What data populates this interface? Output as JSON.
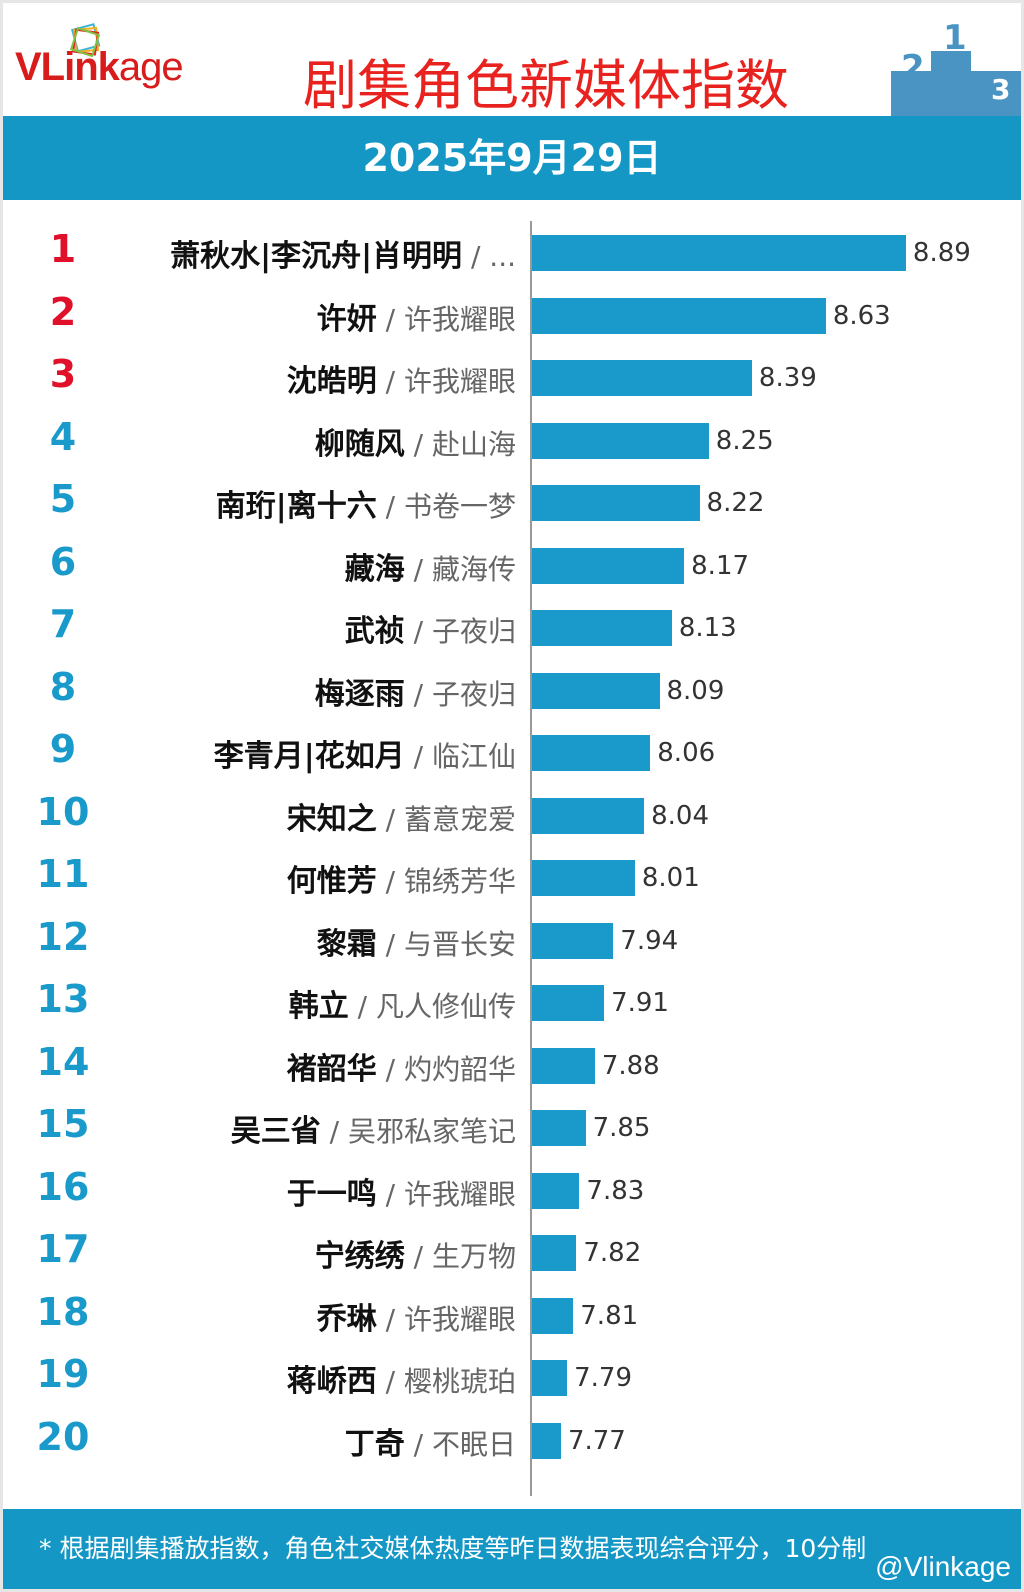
{
  "header": {
    "logo_main": "VLink",
    "logo_tail": "age",
    "title": "剧集角色新媒体指数",
    "date": "2025年9月29日"
  },
  "footer": {
    "note": "* 根据剧集播放指数，角色社交媒体热度等昨日数据表现综合评分，10分制",
    "watermark": "@Vlinkage"
  },
  "colors": {
    "bar": "#1a9acb",
    "top_rank": "#e0102a",
    "rank": "#1a9acb",
    "title": "#e8231f"
  },
  "chart_data": {
    "type": "bar",
    "orientation": "horizontal",
    "title": "剧集角色新媒体指数",
    "categories": [
      "萧秋水|李沉舟|肖明明",
      "许妍",
      "沈皓明",
      "柳随风",
      "南珩|离十六",
      "藏海",
      "武祯",
      "梅逐雨",
      "李青月|花如月",
      "宋知之",
      "何惟芳",
      "黎霜",
      "韩立",
      "褚韶华",
      "吴三省",
      "于一鸣",
      "宁绣绣",
      "乔琳",
      "蒋峤西",
      "丁奇"
    ],
    "shows": [
      "...",
      "许我耀眼",
      "许我耀眼",
      "赴山海",
      "书卷一梦",
      "藏海传",
      "子夜归",
      "子夜归",
      "临江仙",
      "蓄意宠爱",
      "锦绣芳华",
      "与晋长安",
      "凡人修仙传",
      "灼灼韶华",
      "吴邪私家笔记",
      "许我耀眼",
      "生万物",
      "许我耀眼",
      "樱桃琥珀",
      "不眠日"
    ],
    "ranks": [
      "1",
      "2",
      "3",
      "4",
      "5",
      "6",
      "7",
      "8",
      "9",
      "10",
      "11",
      "12",
      "13",
      "14",
      "15",
      "16",
      "17",
      "18",
      "19",
      "20"
    ],
    "values": [
      8.89,
      8.63,
      8.39,
      8.25,
      8.22,
      8.17,
      8.13,
      8.09,
      8.06,
      8.04,
      8.01,
      7.94,
      7.91,
      7.88,
      7.85,
      7.83,
      7.82,
      7.81,
      7.79,
      7.77
    ],
    "value_labels": [
      "8.89",
      "8.63",
      "8.39",
      "8.25",
      "8.22",
      "8.17",
      "8.13",
      "8.09",
      "8.06",
      "8.04",
      "8.01",
      "7.94",
      "7.91",
      "7.88",
      "7.85",
      "7.83",
      "7.82",
      "7.81",
      "7.79",
      "7.77"
    ],
    "xlim": [
      7.676,
      9.0
    ],
    "grid": false
  }
}
